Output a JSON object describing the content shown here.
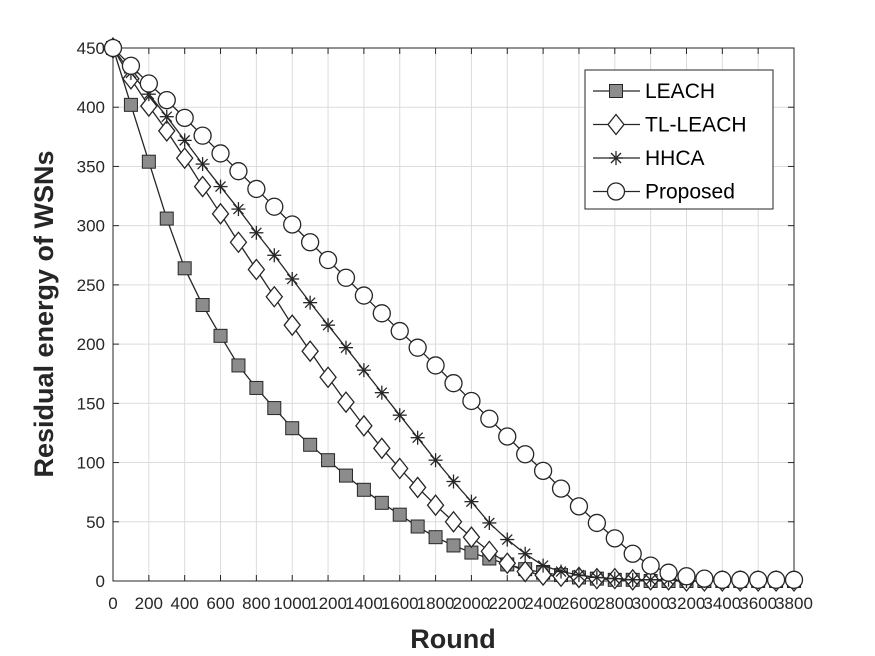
{
  "chart_data": {
    "type": "line",
    "xlabel": "Round",
    "ylabel": "Residual energy of WSNs",
    "xlim": [
      0,
      3800
    ],
    "ylim": [
      0,
      450
    ],
    "grid": true,
    "legend_position": "top-right",
    "x_ticks": [
      0,
      200,
      400,
      600,
      800,
      1000,
      1200,
      1400,
      1600,
      1800,
      2000,
      2200,
      2400,
      2600,
      2800,
      3000,
      3200,
      3400,
      3600,
      3800
    ],
    "x_tick_labels": [
      "0",
      "200",
      "400",
      "600",
      "800",
      "1000",
      "1200",
      "1400",
      "1600",
      "1800",
      "2000",
      "2200",
      "2400",
      "2600",
      "2800",
      "3000",
      "3200",
      "3400",
      "3600",
      "3800"
    ],
    "y_ticks": [
      0,
      50,
      100,
      150,
      200,
      250,
      300,
      350,
      400,
      450
    ],
    "y_tick_labels": [
      "0",
      "50",
      "100",
      "150",
      "200",
      "250",
      "300",
      "350",
      "400",
      "450"
    ],
    "x": [
      0,
      100,
      200,
      300,
      400,
      500,
      600,
      700,
      800,
      900,
      1000,
      1100,
      1200,
      1300,
      1400,
      1500,
      1600,
      1700,
      1800,
      1900,
      2000,
      2100,
      2200,
      2300,
      2400,
      2500,
      2600,
      2700,
      2800,
      2900,
      3000,
      3100,
      3200,
      3300,
      3400,
      3500,
      3600,
      3700,
      3800
    ],
    "series": [
      {
        "name": "LEACH",
        "marker": "square",
        "values": [
          450,
          402,
          354,
          306,
          264,
          233,
          207,
          182,
          163,
          146,
          129,
          115,
          102,
          89,
          77,
          66,
          56,
          46,
          37,
          30,
          24,
          19,
          14,
          10,
          7,
          5,
          3,
          2,
          1,
          1,
          0,
          0,
          0,
          0,
          0,
          0,
          0,
          0,
          0
        ]
      },
      {
        "name": "TL-LEACH",
        "marker": "diamond",
        "values": [
          450,
          424,
          401,
          380,
          357,
          333,
          310,
          286,
          263,
          240,
          216,
          194,
          172,
          151,
          131,
          112,
          95,
          79,
          64,
          50,
          37,
          25,
          15,
          8,
          5,
          4,
          3,
          2,
          2,
          1,
          1,
          1,
          0,
          0,
          0,
          0,
          0,
          0,
          0
        ]
      },
      {
        "name": "HHCA",
        "marker": "asterisk",
        "values": [
          450,
          429,
          411,
          392,
          372,
          352,
          333,
          314,
          294,
          275,
          255,
          235,
          216,
          197,
          178,
          159,
          140,
          121,
          102,
          84,
          67,
          49,
          35,
          23,
          13,
          8,
          5,
          3,
          2,
          1,
          1,
          1,
          0,
          0,
          0,
          0,
          0,
          0,
          0
        ]
      },
      {
        "name": "Proposed",
        "marker": "circle",
        "values": [
          450,
          435,
          420,
          406,
          391,
          376,
          361,
          346,
          331,
          316,
          301,
          286,
          271,
          256,
          241,
          226,
          211,
          197,
          182,
          167,
          152,
          137,
          122,
          107,
          93,
          78,
          63,
          49,
          36,
          23,
          13,
          7,
          4,
          2,
          1,
          1,
          1,
          1,
          1
        ]
      }
    ]
  }
}
